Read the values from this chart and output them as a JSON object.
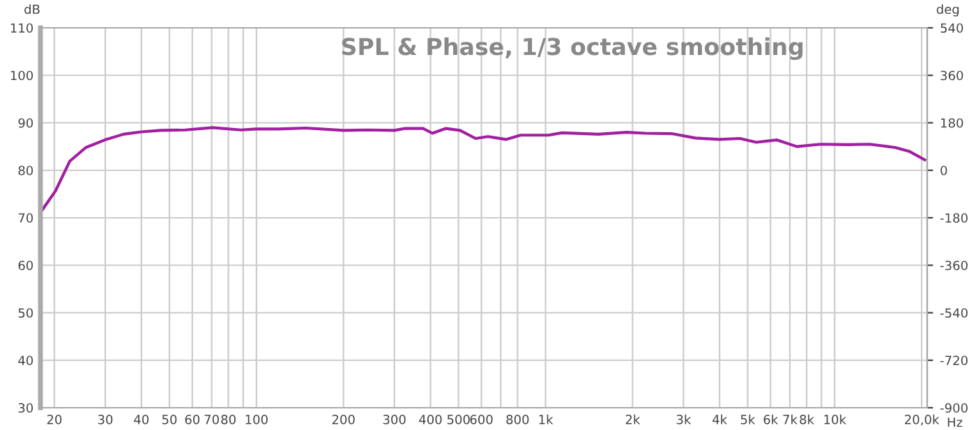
{
  "chart_data": {
    "type": "line",
    "title": "SPL & Phase, 1/3 octave smoothing",
    "ylabel": "dB",
    "y2label": "deg",
    "xlabel": "Hz",
    "log": "x",
    "grid": true,
    "legend": false,
    "xlim": [
      17.9,
      20900
    ],
    "xticks": [
      20,
      30,
      40,
      50,
      60,
      70,
      80,
      {
        "value": 90,
        "label": null
      },
      100,
      200,
      300,
      400,
      500,
      600,
      {
        "value": 700,
        "label": null
      },
      800,
      {
        "value": 1000,
        "label": "1k"
      },
      {
        "value": 2000,
        "label": "2k"
      },
      {
        "value": 3000,
        "label": "3k"
      },
      {
        "value": 4000,
        "label": "4k"
      },
      {
        "value": 5000,
        "label": "5k"
      },
      {
        "value": 6000,
        "label": "6k"
      },
      {
        "value": 7000,
        "label": "7k"
      },
      {
        "value": 8000,
        "label": "8k"
      },
      {
        "value": 9000,
        "label": null
      },
      {
        "value": 10000,
        "label": "10k"
      },
      {
        "value": 20000,
        "label": "20,0k"
      }
    ],
    "ylim": [
      30,
      110
    ],
    "yticks": [
      30,
      40,
      50,
      60,
      70,
      80,
      90,
      100,
      110
    ],
    "y2lim": [
      -900,
      540
    ],
    "y2ticks": [
      -900,
      -720,
      -540,
      -360,
      -180,
      0,
      180,
      360,
      540
    ],
    "x": [
      17.9,
      20.2,
      22.6,
      25.7,
      29.9,
      34.7,
      40,
      46.5,
      56.8,
      70.6,
      88.3,
      100,
      119.6,
      148,
      200,
      241,
      300,
      325,
      377,
      406,
      451,
      506,
      573,
      632,
      729,
      820,
      1024,
      1140,
      1523,
      1905,
      2210,
      2750,
      3300,
      3980,
      4700,
      5360,
      6300,
      7400,
      8950,
      11100,
      13200,
      16200,
      18100,
      20500
    ],
    "series": [
      {
        "color": "#a020a0",
        "values": [
          71.1,
          75.7,
          81.9,
          84.8,
          86.4,
          87.6,
          88.1,
          88.4,
          88.5,
          89.0,
          88.5,
          88.7,
          88.7,
          88.9,
          88.4,
          88.5,
          88.4,
          88.8,
          88.8,
          87.8,
          88.8,
          88.4,
          86.7,
          87.1,
          86.5,
          87.4,
          87.4,
          87.9,
          87.6,
          88.0,
          87.8,
          87.7,
          86.8,
          86.5,
          86.7,
          85.9,
          86.4,
          85.0,
          85.5,
          85.4,
          85.5,
          84.8,
          84.0,
          82.2
        ]
      }
    ]
  }
}
